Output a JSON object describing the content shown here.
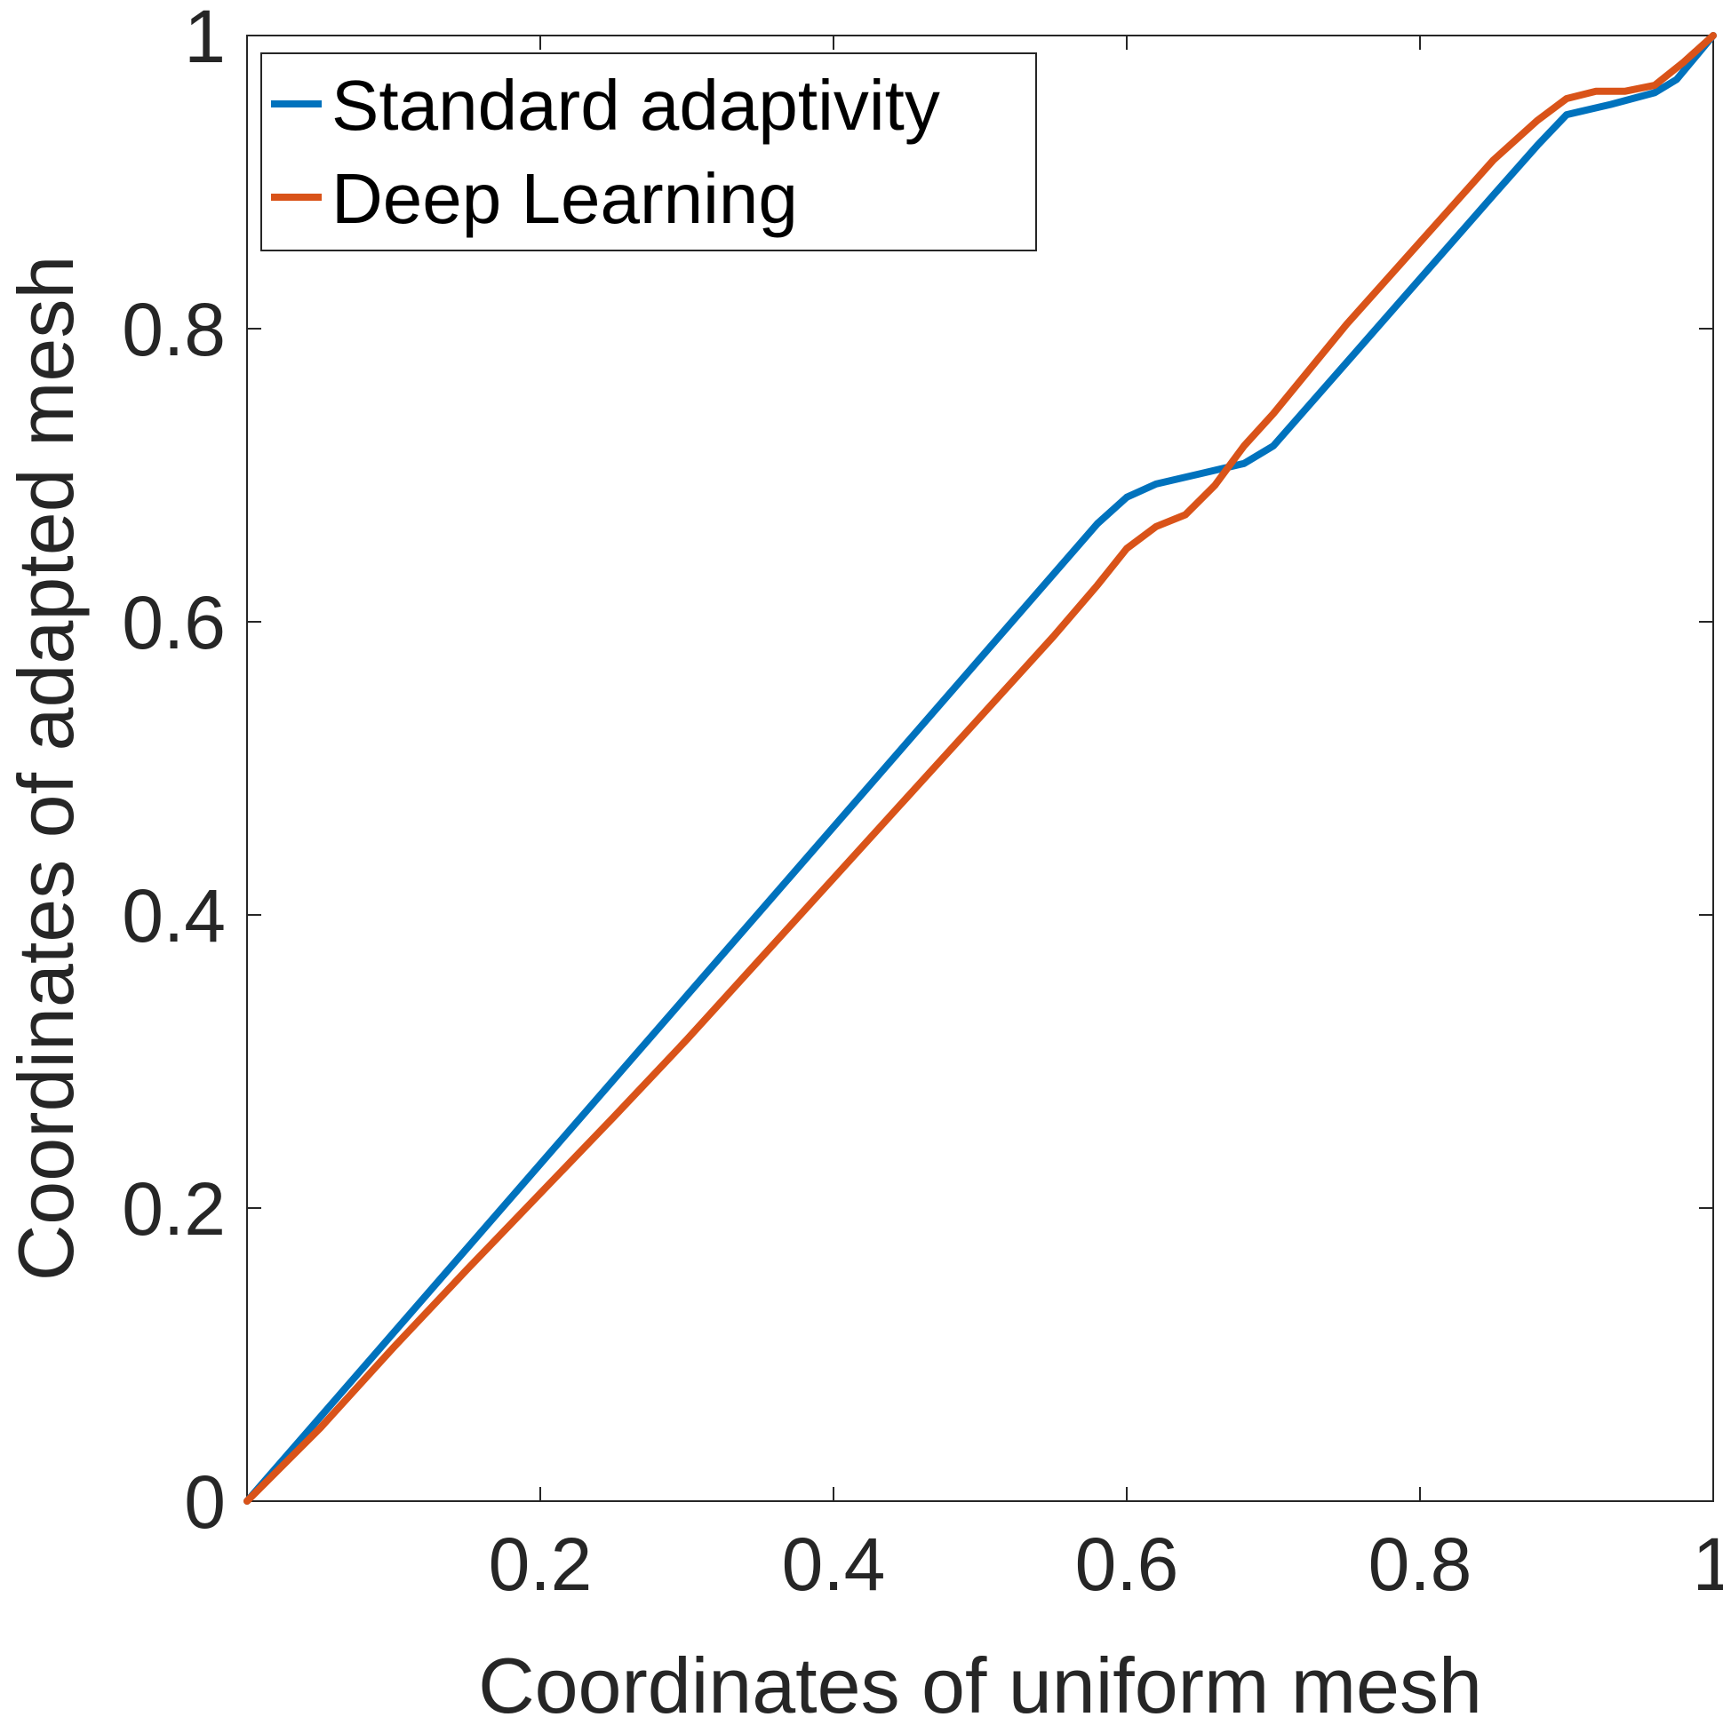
{
  "chart_data": {
    "type": "line",
    "title": "",
    "xlabel": "Coordinates of uniform mesh",
    "ylabel": "Coordinates of adapted mesh",
    "xlim": [
      0,
      1
    ],
    "ylim": [
      0,
      1
    ],
    "grid": false,
    "legend_position": "top-left",
    "x_ticks": [
      0.2,
      0.4,
      0.6,
      0.8,
      1
    ],
    "x_tick_labels": [
      "0.2",
      "0.4",
      "0.6",
      "0.8",
      "1"
    ],
    "y_ticks": [
      0,
      0.2,
      0.4,
      0.6,
      0.8,
      1
    ],
    "y_tick_labels": [
      "0",
      "0.2",
      "0.4",
      "0.6",
      "0.8",
      "1"
    ],
    "series": [
      {
        "name": "Standard adaptivity",
        "color": "#0072BD",
        "x": [
          0,
          0.1,
          0.2,
          0.3,
          0.4,
          0.5,
          0.58,
          0.6,
          0.62,
          0.65,
          0.68,
          0.7,
          0.75,
          0.8,
          0.85,
          0.88,
          0.9,
          0.93,
          0.96,
          0.975,
          0.99,
          1
        ],
        "y": [
          0,
          0.115,
          0.23,
          0.345,
          0.46,
          0.575,
          0.667,
          0.685,
          0.694,
          0.701,
          0.708,
          0.72,
          0.777,
          0.834,
          0.891,
          0.925,
          0.946,
          0.953,
          0.961,
          0.97,
          0.988,
          1
        ]
      },
      {
        "name": "Deep Learning",
        "color": "#D95319",
        "x": [
          0,
          0.05,
          0.1,
          0.15,
          0.2,
          0.25,
          0.3,
          0.35,
          0.4,
          0.45,
          0.5,
          0.55,
          0.58,
          0.6,
          0.62,
          0.64,
          0.66,
          0.68,
          0.7,
          0.75,
          0.8,
          0.85,
          0.88,
          0.9,
          0.92,
          0.94,
          0.96,
          0.98,
          1
        ],
        "y": [
          0,
          0.05,
          0.105,
          0.158,
          0.21,
          0.262,
          0.315,
          0.37,
          0.425,
          0.48,
          0.535,
          0.59,
          0.625,
          0.65,
          0.665,
          0.673,
          0.693,
          0.72,
          0.742,
          0.803,
          0.859,
          0.915,
          0.942,
          0.957,
          0.962,
          0.962,
          0.966,
          0.982,
          1
        ]
      }
    ]
  }
}
